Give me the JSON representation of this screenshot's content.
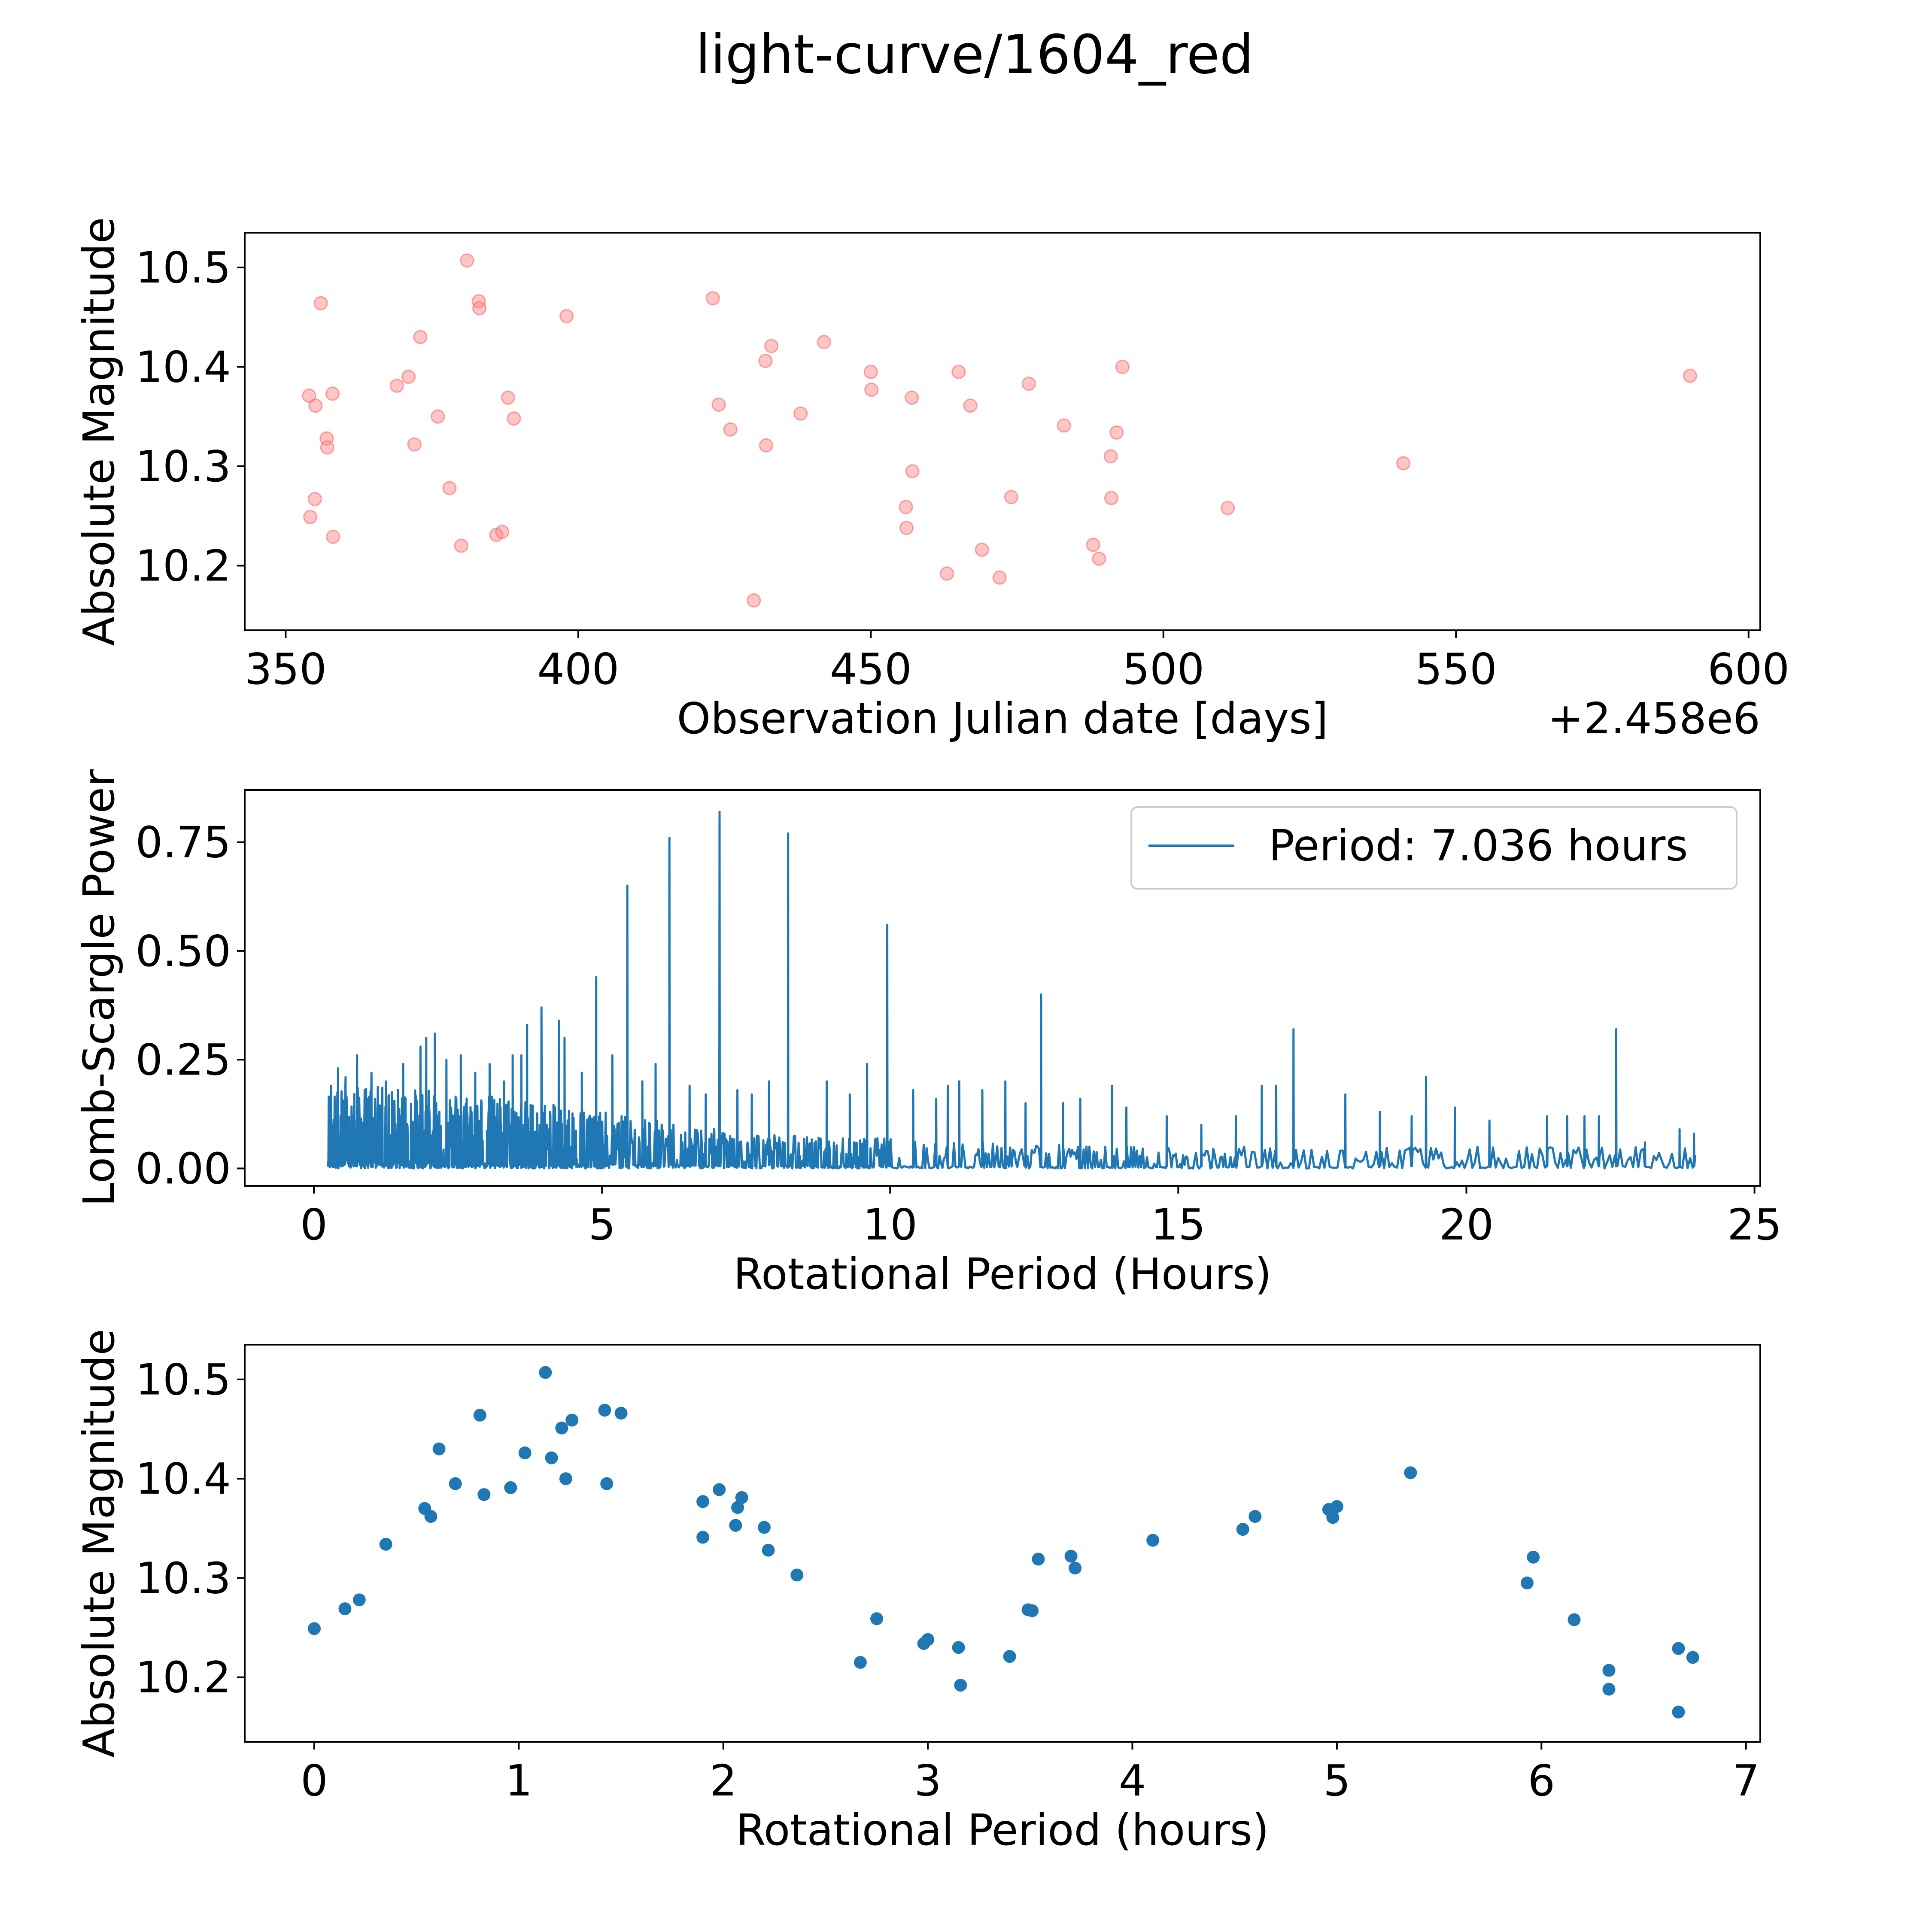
{
  "figure": {
    "suptitle": "light-curve/1604_red"
  },
  "colors": {
    "red_fill": "#ff8080",
    "red_stroke": "#ff6666",
    "blue": "#1f77b4",
    "axes": "#000000"
  },
  "chart_data": [
    {
      "type": "scatter",
      "title": "",
      "xlabel": "Observation Julian date [days]",
      "ylabel": "Absolute Magnitude",
      "offset_label": "+2.458e6",
      "xlim": [
        343,
        602
      ],
      "ylim": [
        10.135,
        10.535
      ],
      "xticks": [
        350,
        400,
        450,
        500,
        550,
        600
      ],
      "xtick_labels": [
        "350",
        "400",
        "450",
        "500",
        "550",
        "600"
      ],
      "yticks": [
        10.2,
        10.3,
        10.4,
        10.5
      ],
      "ytick_labels": [
        "10.2",
        "10.3",
        "10.4",
        "10.5"
      ],
      "marker": "o-faint",
      "color": "#ff8080",
      "points": [
        [
          354.0,
          10.371
        ],
        [
          354.2,
          10.249
        ],
        [
          355.0,
          10.267
        ],
        [
          355.1,
          10.361
        ],
        [
          356.0,
          10.464
        ],
        [
          357.0,
          10.328
        ],
        [
          357.1,
          10.319
        ],
        [
          358.0,
          10.373
        ],
        [
          358.1,
          10.229
        ],
        [
          369.0,
          10.381
        ],
        [
          371.0,
          10.39
        ],
        [
          372.0,
          10.322
        ],
        [
          373.0,
          10.43
        ],
        [
          376.0,
          10.35
        ],
        [
          378.0,
          10.278
        ],
        [
          380.0,
          10.22
        ],
        [
          381.0,
          10.507
        ],
        [
          383.0,
          10.466
        ],
        [
          383.1,
          10.459
        ],
        [
          386.0,
          10.231
        ],
        [
          387.0,
          10.234
        ],
        [
          388.0,
          10.369
        ],
        [
          389.0,
          10.348
        ],
        [
          398.0,
          10.451
        ],
        [
          423.0,
          10.469
        ],
        [
          424.0,
          10.362
        ],
        [
          426.0,
          10.337
        ],
        [
          430.0,
          10.165
        ],
        [
          432.0,
          10.406
        ],
        [
          432.1,
          10.321
        ],
        [
          433.0,
          10.421
        ],
        [
          438.0,
          10.353
        ],
        [
          442.0,
          10.425
        ],
        [
          450.0,
          10.395
        ],
        [
          450.1,
          10.377
        ],
        [
          456.0,
          10.259
        ],
        [
          456.1,
          10.238
        ],
        [
          457.0,
          10.369
        ],
        [
          457.1,
          10.295
        ],
        [
          463.0,
          10.192
        ],
        [
          465.0,
          10.395
        ],
        [
          467.0,
          10.361
        ],
        [
          469.0,
          10.216
        ],
        [
          472.0,
          10.188
        ],
        [
          474.0,
          10.269
        ],
        [
          477.0,
          10.383
        ],
        [
          483.0,
          10.341
        ],
        [
          488.0,
          10.221
        ],
        [
          489.0,
          10.207
        ],
        [
          491.0,
          10.31
        ],
        [
          491.1,
          10.268
        ],
        [
          492.0,
          10.334
        ],
        [
          493.0,
          10.4
        ],
        [
          511.0,
          10.258
        ],
        [
          541.0,
          10.303
        ],
        [
          590.0,
          10.391
        ]
      ]
    },
    {
      "type": "line",
      "title": "",
      "xlabel": "Rotational Period (Hours)",
      "ylabel": "Lomb-Scargle Power",
      "xlim": [
        -1.2,
        25.1
      ],
      "ylim": [
        -0.04,
        0.87
      ],
      "xticks": [
        0,
        5,
        10,
        15,
        20,
        25
      ],
      "xtick_labels": [
        "0",
        "5",
        "10",
        "15",
        "20",
        "25"
      ],
      "yticks": [
        0.0,
        0.25,
        0.5,
        0.75
      ],
      "ytick_labels": [
        "0.00",
        "0.25",
        "0.50",
        "0.75"
      ],
      "color": "#1f77b4",
      "legend": {
        "label": "Period: 7.036 hours",
        "position": "top-right"
      },
      "x_range": [
        0.24,
        24.0
      ],
      "baseline_envelope": [
        [
          0.24,
          0.18
        ],
        [
          1,
          0.19
        ],
        [
          2,
          0.18
        ],
        [
          3,
          0.17
        ],
        [
          4,
          0.15
        ],
        [
          5,
          0.13
        ],
        [
          6,
          0.11
        ],
        [
          7,
          0.09
        ],
        [
          8,
          0.08
        ],
        [
          9,
          0.07
        ],
        [
          10,
          0.07
        ],
        [
          12,
          0.06
        ],
        [
          14,
          0.05
        ],
        [
          16,
          0.05
        ],
        [
          18,
          0.05
        ],
        [
          20,
          0.05
        ],
        [
          22,
          0.05
        ],
        [
          24,
          0.05
        ]
      ],
      "peaks": [
        [
          0.3,
          0.19
        ],
        [
          0.42,
          0.23
        ],
        [
          0.55,
          0.21
        ],
        [
          0.75,
          0.26
        ],
        [
          1.0,
          0.22
        ],
        [
          1.25,
          0.2
        ],
        [
          1.55,
          0.24
        ],
        [
          1.85,
          0.28
        ],
        [
          1.95,
          0.3
        ],
        [
          2.1,
          0.31
        ],
        [
          2.3,
          0.25
        ],
        [
          2.55,
          0.26
        ],
        [
          2.8,
          0.22
        ],
        [
          3.05,
          0.24
        ],
        [
          3.3,
          0.2
        ],
        [
          3.45,
          0.26
        ],
        [
          3.6,
          0.26
        ],
        [
          3.7,
          0.33
        ],
        [
          3.95,
          0.37
        ],
        [
          4.25,
          0.34
        ],
        [
          4.35,
          0.3
        ],
        [
          4.65,
          0.22
        ],
        [
          4.9,
          0.44
        ],
        [
          5.18,
          0.26
        ],
        [
          5.44,
          0.65
        ],
        [
          5.7,
          0.2
        ],
        [
          5.93,
          0.24
        ],
        [
          6.17,
          0.76
        ],
        [
          6.52,
          0.19
        ],
        [
          6.8,
          0.17
        ],
        [
          7.04,
          0.82
        ],
        [
          7.35,
          0.18
        ],
        [
          7.6,
          0.17
        ],
        [
          7.9,
          0.2
        ],
        [
          8.23,
          0.77
        ],
        [
          8.9,
          0.2
        ],
        [
          9.3,
          0.17
        ],
        [
          9.6,
          0.24
        ],
        [
          9.95,
          0.56
        ],
        [
          10.4,
          0.18
        ],
        [
          10.8,
          0.16
        ],
        [
          11.0,
          0.19
        ],
        [
          11.2,
          0.2
        ],
        [
          11.6,
          0.18
        ],
        [
          12.0,
          0.2
        ],
        [
          12.35,
          0.15
        ],
        [
          12.62,
          0.4
        ],
        [
          13.0,
          0.15
        ],
        [
          13.3,
          0.16
        ],
        [
          13.85,
          0.19
        ],
        [
          14.1,
          0.14
        ],
        [
          14.8,
          0.12
        ],
        [
          15.4,
          0.1
        ],
        [
          16.0,
          0.12
        ],
        [
          16.45,
          0.19
        ],
        [
          16.7,
          0.19
        ],
        [
          17.0,
          0.32
        ],
        [
          17.9,
          0.17
        ],
        [
          18.5,
          0.13
        ],
        [
          19.05,
          0.12
        ],
        [
          19.3,
          0.21
        ],
        [
          19.8,
          0.14
        ],
        [
          20.4,
          0.11
        ],
        [
          21.4,
          0.12
        ],
        [
          21.75,
          0.12
        ],
        [
          22.05,
          0.12
        ],
        [
          22.3,
          0.12
        ],
        [
          22.6,
          0.32
        ],
        [
          23.1,
          0.06
        ],
        [
          23.7,
          0.09
        ],
        [
          23.95,
          0.08
        ]
      ]
    },
    {
      "type": "scatter",
      "title": "",
      "xlabel": "Rotational Period (hours)",
      "ylabel": "Absolute Magnitude",
      "xlim": [
        -0.34,
        7.07
      ],
      "ylim": [
        10.135,
        10.535
      ],
      "xticks": [
        0,
        1,
        2,
        3,
        4,
        5,
        6,
        7
      ],
      "xtick_labels": [
        "0",
        "1",
        "2",
        "3",
        "4",
        "5",
        "6",
        "7"
      ],
      "yticks": [
        10.2,
        10.3,
        10.4,
        10.5
      ],
      "ytick_labels": [
        "10.2",
        "10.3",
        "10.4",
        "10.5"
      ],
      "marker": "o",
      "color": "#1f77b4",
      "points": [
        [
          0.0,
          10.249
        ],
        [
          0.15,
          10.269
        ],
        [
          0.22,
          10.278
        ],
        [
          0.35,
          10.334
        ],
        [
          0.54,
          10.37
        ],
        [
          0.57,
          10.362
        ],
        [
          0.61,
          10.43
        ],
        [
          0.69,
          10.395
        ],
        [
          0.81,
          10.464
        ],
        [
          0.83,
          10.384
        ],
        [
          0.96,
          10.391
        ],
        [
          1.03,
          10.426
        ],
        [
          1.13,
          10.507
        ],
        [
          1.16,
          10.421
        ],
        [
          1.21,
          10.451
        ],
        [
          1.23,
          10.4
        ],
        [
          1.26,
          10.459
        ],
        [
          1.42,
          10.469
        ],
        [
          1.43,
          10.395
        ],
        [
          1.5,
          10.466
        ],
        [
          1.9,
          10.377
        ],
        [
          1.9,
          10.341
        ],
        [
          1.98,
          10.389
        ],
        [
          2.06,
          10.353
        ],
        [
          2.07,
          10.371
        ],
        [
          2.09,
          10.381
        ],
        [
          2.2,
          10.351
        ],
        [
          2.22,
          10.328
        ],
        [
          2.36,
          10.303
        ],
        [
          2.67,
          10.215
        ],
        [
          2.75,
          10.259
        ],
        [
          2.98,
          10.234
        ],
        [
          3.0,
          10.238
        ],
        [
          3.15,
          10.23
        ],
        [
          3.16,
          10.192
        ],
        [
          3.4,
          10.221
        ],
        [
          3.49,
          10.268
        ],
        [
          3.51,
          10.267
        ],
        [
          3.54,
          10.319
        ],
        [
          3.7,
          10.322
        ],
        [
          3.72,
          10.31
        ],
        [
          4.1,
          10.338
        ],
        [
          4.54,
          10.349
        ],
        [
          4.6,
          10.362
        ],
        [
          4.96,
          10.369
        ],
        [
          4.98,
          10.361
        ],
        [
          5.0,
          10.372
        ],
        [
          5.36,
          10.406
        ],
        [
          5.93,
          10.295
        ],
        [
          5.96,
          10.321
        ],
        [
          6.16,
          10.258
        ],
        [
          6.33,
          10.207
        ],
        [
          6.33,
          10.188
        ],
        [
          6.67,
          10.229
        ],
        [
          6.67,
          10.165
        ],
        [
          6.74,
          10.22
        ]
      ]
    }
  ]
}
